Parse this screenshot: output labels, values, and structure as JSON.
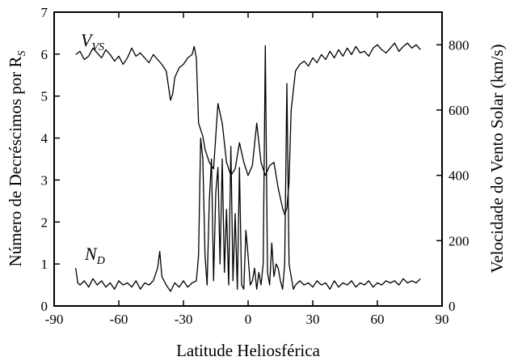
{
  "chart_data": {
    "type": "line",
    "xlabel": "Latitude Heliosférica",
    "ylabel_left": "Número de Decréscimos por R",
    "ylabel_left_subscript": "S",
    "ylabel_right": "Velocidade do Vento Solar (km/s)",
    "xlim": [
      -90,
      90
    ],
    "ylim_left": [
      0,
      7
    ],
    "ylim_right": [
      0,
      900
    ],
    "x_ticks": [
      -90,
      -60,
      -30,
      0,
      30,
      60,
      90
    ],
    "y_left_ticks": [
      0,
      1,
      2,
      3,
      4,
      5,
      6,
      7
    ],
    "y_right_ticks": [
      0,
      200,
      400,
      600,
      800
    ],
    "grid": false,
    "legend": "none",
    "series": [
      {
        "name": "V",
        "name_subscript": "VS",
        "axis": "right",
        "x": [
          -80,
          -78,
          -76,
          -74,
          -72,
          -70,
          -68,
          -66,
          -64,
          -62,
          -60,
          -58,
          -56,
          -54,
          -52,
          -50,
          -48,
          -46,
          -44,
          -42,
          -40,
          -38,
          -36,
          -35,
          -34,
          -32,
          -30,
          -28,
          -26,
          -25,
          -24,
          -23,
          -22,
          -21,
          -20,
          -18,
          -16,
          -14,
          -12,
          -10,
          -8,
          -6,
          -4,
          -2,
          0,
          2,
          4,
          6,
          8,
          10,
          12,
          14,
          16,
          17,
          18,
          19,
          20,
          22,
          24,
          26,
          28,
          30,
          32,
          34,
          36,
          38,
          40,
          42,
          44,
          46,
          48,
          50,
          52,
          54,
          56,
          58,
          60,
          62,
          64,
          66,
          68,
          70,
          72,
          74,
          76,
          78,
          80
        ],
        "y": [
          770,
          780,
          755,
          765,
          790,
          775,
          760,
          785,
          770,
          750,
          765,
          740,
          760,
          790,
          765,
          775,
          760,
          745,
          770,
          755,
          740,
          720,
          630,
          650,
          700,
          730,
          740,
          760,
          770,
          795,
          760,
          560,
          540,
          520,
          480,
          440,
          420,
          620,
          560,
          440,
          400,
          420,
          500,
          440,
          400,
          430,
          560,
          440,
          400,
          430,
          440,
          360,
          300,
          280,
          300,
          380,
          600,
          720,
          740,
          750,
          735,
          760,
          745,
          770,
          755,
          780,
          760,
          785,
          765,
          790,
          770,
          795,
          775,
          780,
          765,
          790,
          800,
          785,
          775,
          790,
          805,
          780,
          795,
          805,
          790,
          800,
          785
        ]
      },
      {
        "name": "N",
        "name_subscript": "D",
        "axis": "left",
        "x": [
          -80,
          -79,
          -78,
          -76,
          -74,
          -72,
          -70,
          -68,
          -66,
          -64,
          -62,
          -60,
          -58,
          -56,
          -54,
          -52,
          -50,
          -48,
          -46,
          -44,
          -42,
          -41,
          -40,
          -38,
          -36,
          -34,
          -32,
          -30,
          -28,
          -26,
          -24,
          -23,
          -22,
          -21,
          -20,
          -19,
          -18,
          -17,
          -16,
          -15,
          -14,
          -13,
          -12,
          -11,
          -10,
          -9,
          -8,
          -7,
          -6,
          -5,
          -4,
          -3,
          -2,
          -1,
          0,
          1,
          2,
          3,
          4,
          5,
          6,
          7,
          8,
          9,
          10,
          11,
          12,
          13,
          14,
          15,
          16,
          17,
          18,
          19,
          20,
          21,
          22,
          24,
          26,
          28,
          30,
          32,
          34,
          36,
          38,
          40,
          42,
          44,
          46,
          48,
          50,
          52,
          54,
          56,
          58,
          60,
          62,
          64,
          66,
          68,
          70,
          72,
          74,
          76,
          78,
          80
        ],
        "y": [
          0.9,
          0.55,
          0.5,
          0.6,
          0.45,
          0.65,
          0.5,
          0.6,
          0.45,
          0.55,
          0.4,
          0.6,
          0.5,
          0.55,
          0.45,
          0.6,
          0.4,
          0.55,
          0.5,
          0.6,
          0.9,
          1.3,
          0.7,
          0.5,
          0.35,
          0.55,
          0.45,
          0.6,
          0.45,
          0.55,
          0.6,
          1.2,
          4.0,
          3.5,
          1.2,
          0.5,
          2.5,
          3.5,
          0.6,
          2.7,
          3.3,
          1.0,
          3.5,
          0.8,
          2.3,
          0.5,
          3.8,
          0.6,
          2.2,
          0.4,
          3.3,
          0.5,
          0.4,
          1.8,
          1.2,
          0.5,
          0.6,
          0.9,
          0.4,
          0.8,
          0.5,
          1.0,
          6.2,
          0.8,
          0.5,
          1.5,
          0.7,
          1.0,
          0.9,
          0.6,
          0.4,
          1.0,
          5.3,
          1.0,
          0.7,
          0.4,
          0.5,
          0.6,
          0.5,
          0.55,
          0.45,
          0.6,
          0.5,
          0.55,
          0.4,
          0.6,
          0.45,
          0.55,
          0.5,
          0.6,
          0.45,
          0.55,
          0.5,
          0.6,
          0.45,
          0.55,
          0.5,
          0.6,
          0.55,
          0.6,
          0.5,
          0.65,
          0.55,
          0.6,
          0.55,
          0.65
        ]
      }
    ]
  }
}
